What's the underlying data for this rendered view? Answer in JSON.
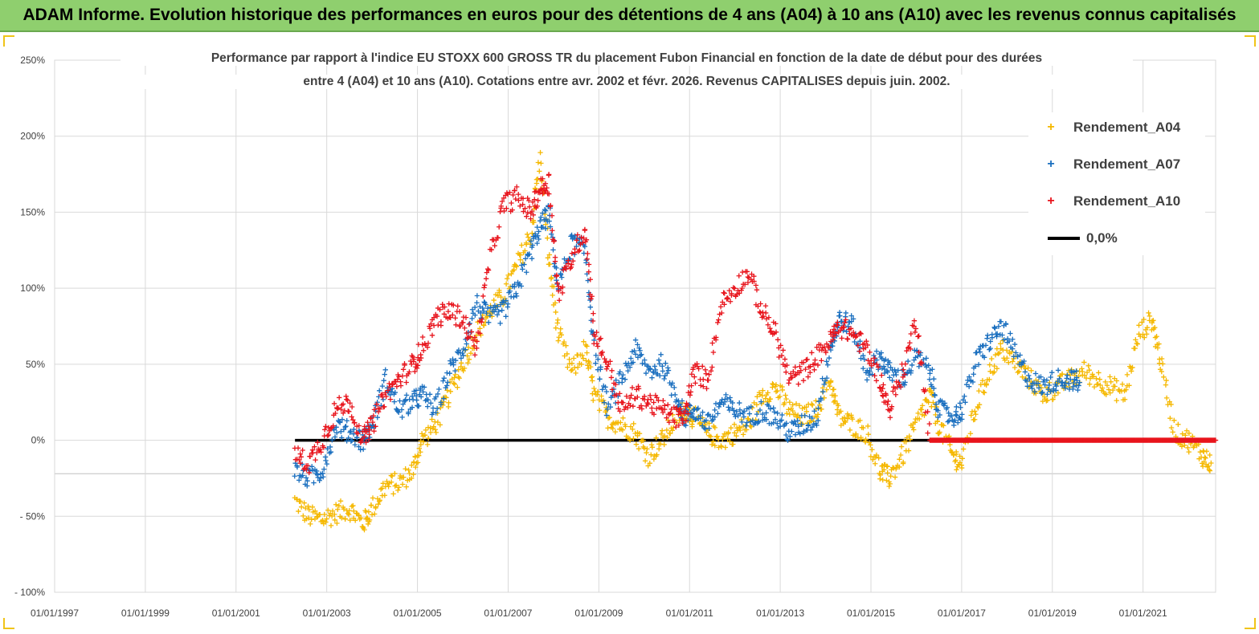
{
  "header": {
    "title": "ADAM Informe. Evolution historique des performances en euros pour des détentions de 4 ans (A04) à 10 ans (A10) avec les revenus connus capitalisés"
  },
  "chart_data": {
    "type": "scatter",
    "title_line1": "Performance par rapport à l'indice EU STOXX 600 GROSS TR  du placement Fubon Financial  en fonction de la date de début pour des durées",
    "title_line2": "entre 4 (A04) et 10 ans (A10).  Cotations entre avr. 2002 et févr. 2026. Revenus  CAPITALISES depuis juin. 2002.",
    "xlabel": "",
    "ylabel": "",
    "y_ticks": [
      "250%",
      "200%",
      "150%",
      "100%",
      "50%",
      "0%",
      "- 50%",
      "- 100%"
    ],
    "x_ticks": [
      "01/01/1997",
      "01/01/1999",
      "01/01/2001",
      "01/01/2003",
      "01/01/2005",
      "01/01/2007",
      "01/01/2009",
      "01/01/2011",
      "01/01/2013",
      "01/01/2015",
      "01/01/2017",
      "01/01/2019",
      "01/01/2021"
    ],
    "ylim": [
      -100,
      250
    ],
    "xlim": [
      1997.0,
      2022.6
    ],
    "grid": true,
    "legend_position": "top-right",
    "series": [
      {
        "name": "Rendement_A04",
        "color": "#f5b800",
        "marker": "+",
        "values": [
          [
            2002.3,
            -40
          ],
          [
            2002.6,
            -50
          ],
          [
            2002.9,
            -52
          ],
          [
            2003.2,
            -48
          ],
          [
            2003.5,
            -45
          ],
          [
            2003.8,
            -55
          ],
          [
            2004.0,
            -45
          ],
          [
            2004.3,
            -30
          ],
          [
            2004.6,
            -28
          ],
          [
            2004.9,
            -20
          ],
          [
            2005.1,
            0
          ],
          [
            2005.4,
            10
          ],
          [
            2005.7,
            30
          ],
          [
            2006.0,
            50
          ],
          [
            2006.3,
            70
          ],
          [
            2006.6,
            85
          ],
          [
            2006.9,
            95
          ],
          [
            2007.2,
            115
          ],
          [
            2007.5,
            135
          ],
          [
            2007.7,
            185
          ],
          [
            2007.9,
            120
          ],
          [
            2008.1,
            70
          ],
          [
            2008.4,
            45
          ],
          [
            2008.7,
            60
          ],
          [
            2008.9,
            30
          ],
          [
            2009.2,
            15
          ],
          [
            2009.5,
            10
          ],
          [
            2009.8,
            5
          ],
          [
            2010.1,
            -10
          ],
          [
            2010.4,
            0
          ],
          [
            2010.7,
            15
          ],
          [
            2010.9,
            20
          ],
          [
            2011.1,
            15
          ],
          [
            2011.4,
            5
          ],
          [
            2011.7,
            0
          ],
          [
            2012.0,
            5
          ],
          [
            2012.3,
            10
          ],
          [
            2012.6,
            30
          ],
          [
            2012.9,
            35
          ],
          [
            2013.2,
            20
          ],
          [
            2013.5,
            15
          ],
          [
            2013.8,
            20
          ],
          [
            2014.1,
            40
          ],
          [
            2014.3,
            15
          ],
          [
            2014.6,
            10
          ],
          [
            2014.9,
            5
          ],
          [
            2015.2,
            -20
          ],
          [
            2015.4,
            -25
          ],
          [
            2015.7,
            -10
          ],
          [
            2016.0,
            10
          ],
          [
            2016.3,
            30
          ],
          [
            2016.5,
            10
          ],
          [
            2016.8,
            -10
          ],
          [
            2017.0,
            -15
          ],
          [
            2017.3,
            20
          ],
          [
            2017.6,
            45
          ],
          [
            2017.9,
            60
          ],
          [
            2018.2,
            50
          ],
          [
            2018.5,
            40
          ],
          [
            2018.8,
            30
          ],
          [
            2019.1,
            35
          ],
          [
            2019.4,
            40
          ],
          [
            2019.7,
            45
          ],
          [
            2020.0,
            40
          ],
          [
            2020.3,
            35
          ],
          [
            2020.6,
            30
          ],
          [
            2020.9,
            70
          ],
          [
            2021.2,
            80
          ],
          [
            2021.4,
            50
          ],
          [
            2021.7,
            5
          ],
          [
            2022.0,
            0
          ],
          [
            2022.3,
            -10
          ],
          [
            2022.5,
            -15
          ]
        ]
      },
      {
        "name": "Rendement_A07",
        "color": "#1a6fbf",
        "marker": "+",
        "values": [
          [
            2002.3,
            -20
          ],
          [
            2002.6,
            -25
          ],
          [
            2002.9,
            -20
          ],
          [
            2003.2,
            10
          ],
          [
            2003.5,
            5
          ],
          [
            2003.8,
            0
          ],
          [
            2004.0,
            10
          ],
          [
            2004.3,
            40
          ],
          [
            2004.6,
            20
          ],
          [
            2004.9,
            25
          ],
          [
            2005.1,
            30
          ],
          [
            2005.4,
            20
          ],
          [
            2005.7,
            45
          ],
          [
            2006.0,
            60
          ],
          [
            2006.3,
            90
          ],
          [
            2006.6,
            80
          ],
          [
            2006.9,
            85
          ],
          [
            2007.2,
            100
          ],
          [
            2007.5,
            125
          ],
          [
            2007.7,
            140
          ],
          [
            2007.9,
            150
          ],
          [
            2008.1,
            100
          ],
          [
            2008.4,
            130
          ],
          [
            2008.7,
            125
          ],
          [
            2008.9,
            60
          ],
          [
            2009.2,
            20
          ],
          [
            2009.5,
            40
          ],
          [
            2009.8,
            60
          ],
          [
            2010.1,
            45
          ],
          [
            2010.4,
            50
          ],
          [
            2010.7,
            30
          ],
          [
            2010.9,
            15
          ],
          [
            2011.1,
            20
          ],
          [
            2011.4,
            10
          ],
          [
            2011.7,
            25
          ],
          [
            2012.0,
            20
          ],
          [
            2012.3,
            15
          ],
          [
            2012.6,
            20
          ],
          [
            2012.9,
            15
          ],
          [
            2013.2,
            5
          ],
          [
            2013.5,
            10
          ],
          [
            2013.8,
            15
          ],
          [
            2014.1,
            60
          ],
          [
            2014.3,
            80
          ],
          [
            2014.6,
            75
          ],
          [
            2014.9,
            45
          ],
          [
            2015.2,
            55
          ],
          [
            2015.4,
            45
          ],
          [
            2015.7,
            40
          ],
          [
            2016.0,
            55
          ],
          [
            2016.3,
            45
          ],
          [
            2016.5,
            20
          ],
          [
            2016.8,
            15
          ],
          [
            2017.0,
            20
          ],
          [
            2017.3,
            50
          ],
          [
            2017.6,
            65
          ],
          [
            2017.9,
            75
          ],
          [
            2018.2,
            55
          ],
          [
            2018.5,
            40
          ],
          [
            2018.8,
            35
          ],
          [
            2019.1,
            40
          ],
          [
            2019.4,
            40
          ],
          [
            2019.6,
            38
          ]
        ]
      },
      {
        "name": "Rendement_A10",
        "color": "#e8141c",
        "marker": "+",
        "values": [
          [
            2002.3,
            -10
          ],
          [
            2002.6,
            -15
          ],
          [
            2002.9,
            0
          ],
          [
            2003.2,
            20
          ],
          [
            2003.5,
            25
          ],
          [
            2003.8,
            0
          ],
          [
            2004.0,
            10
          ],
          [
            2004.3,
            30
          ],
          [
            2004.6,
            40
          ],
          [
            2004.9,
            50
          ],
          [
            2005.1,
            60
          ],
          [
            2005.4,
            80
          ],
          [
            2005.7,
            85
          ],
          [
            2006.0,
            80
          ],
          [
            2006.3,
            60
          ],
          [
            2006.6,
            120
          ],
          [
            2006.9,
            155
          ],
          [
            2007.2,
            160
          ],
          [
            2007.5,
            150
          ],
          [
            2007.7,
            165
          ],
          [
            2007.9,
            170
          ],
          [
            2008.1,
            95
          ],
          [
            2008.4,
            120
          ],
          [
            2008.7,
            140
          ],
          [
            2008.9,
            70
          ],
          [
            2009.2,
            50
          ],
          [
            2009.5,
            20
          ],
          [
            2009.8,
            30
          ],
          [
            2010.1,
            25
          ],
          [
            2010.4,
            20
          ],
          [
            2010.7,
            15
          ],
          [
            2010.9,
            15
          ],
          [
            2011.1,
            45
          ],
          [
            2011.4,
            40
          ],
          [
            2011.7,
            90
          ],
          [
            2012.0,
            100
          ],
          [
            2012.3,
            110
          ],
          [
            2012.6,
            85
          ],
          [
            2012.9,
            70
          ],
          [
            2013.2,
            40
          ],
          [
            2013.5,
            45
          ],
          [
            2013.8,
            55
          ],
          [
            2014.1,
            65
          ],
          [
            2014.3,
            75
          ],
          [
            2014.6,
            70
          ],
          [
            2014.9,
            60
          ],
          [
            2015.2,
            40
          ],
          [
            2015.4,
            20
          ],
          [
            2015.7,
            45
          ],
          [
            2016.0,
            80
          ],
          [
            2016.3,
            0
          ],
          [
            2017.0,
            0
          ],
          [
            2018.0,
            0
          ],
          [
            2019.0,
            0
          ],
          [
            2020.0,
            0
          ],
          [
            2021.0,
            0
          ],
          [
            2022.0,
            0
          ],
          [
            2022.6,
            0
          ]
        ]
      },
      {
        "name": "0,0%",
        "color": "#000000",
        "marker": "line",
        "values": [
          [
            2002.3,
            0
          ],
          [
            2016.3,
            0
          ]
        ]
      }
    ]
  }
}
